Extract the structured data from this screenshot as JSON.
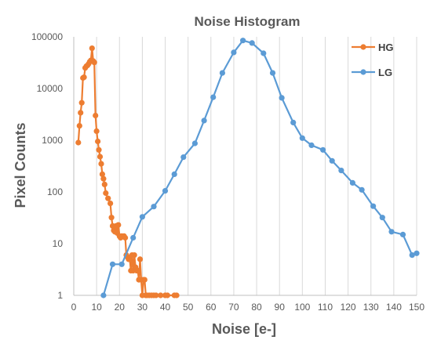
{
  "chart_data": {
    "type": "line",
    "title": "Noise Histogram",
    "xlabel": "Noise [e-]",
    "ylabel": "Pixel Counts",
    "xlim": [
      0,
      150
    ],
    "ylim": [
      1,
      100000
    ],
    "yscale": "log",
    "grid": "vertical",
    "legend_position": "top-right",
    "x_ticks": [
      0,
      10,
      20,
      30,
      40,
      50,
      60,
      70,
      80,
      90,
      100,
      110,
      120,
      130,
      140,
      150
    ],
    "y_ticks": [
      1,
      10,
      100,
      1000,
      10000,
      100000
    ],
    "y_tick_labels": [
      "1",
      "10",
      "100",
      "1000",
      "10000",
      "100000"
    ],
    "series": [
      {
        "name": "HG",
        "color": "#ED7D31",
        "points": [
          [
            2,
            900
          ],
          [
            2.5,
            1900
          ],
          [
            3,
            3400
          ],
          [
            3.5,
            5300
          ],
          [
            4,
            16000
          ],
          [
            4.5,
            16500
          ],
          [
            5,
            25000
          ],
          [
            5.5,
            27000
          ],
          [
            6,
            28000
          ],
          [
            6.5,
            30000
          ],
          [
            7,
            33000
          ],
          [
            7.5,
            35000
          ],
          [
            8,
            60000
          ],
          [
            8.5,
            34000
          ],
          [
            9,
            32000
          ],
          [
            9.5,
            3000
          ],
          [
            10,
            1500
          ],
          [
            10.5,
            950
          ],
          [
            11,
            650
          ],
          [
            11.5,
            480
          ],
          [
            12,
            350
          ],
          [
            12.5,
            220
          ],
          [
            13,
            180
          ],
          [
            13.5,
            140
          ],
          [
            14,
            95
          ],
          [
            15,
            75
          ],
          [
            16,
            60
          ],
          [
            16.5,
            32
          ],
          [
            17,
            22
          ],
          [
            17.5,
            18
          ],
          [
            18,
            17
          ],
          [
            18.5,
            22
          ],
          [
            19,
            16
          ],
          [
            19.5,
            23
          ],
          [
            20,
            14
          ],
          [
            20.5,
            13
          ],
          [
            21,
            14
          ],
          [
            22,
            14
          ],
          [
            22.5,
            13
          ],
          [
            23,
            6
          ],
          [
            23.5,
            5.5
          ],
          [
            24,
            5
          ],
          [
            24.5,
            5
          ],
          [
            25,
            3
          ],
          [
            25.5,
            6
          ],
          [
            26,
            3
          ],
          [
            26.5,
            6
          ],
          [
            27,
            3.5
          ],
          [
            27.5,
            3
          ],
          [
            28,
            3
          ],
          [
            28.5,
            2
          ],
          [
            29,
            5
          ],
          [
            29.5,
            2
          ],
          [
            30,
            1
          ],
          [
            30.5,
            2
          ],
          [
            31,
            2
          ],
          [
            31.5,
            1
          ],
          [
            32,
            1
          ],
          [
            33,
            1
          ],
          [
            34,
            1
          ],
          [
            35,
            1
          ],
          [
            36,
            1
          ],
          [
            38,
            1
          ],
          [
            40,
            1
          ],
          [
            41,
            1
          ],
          [
            44,
            1
          ],
          [
            45,
            1
          ]
        ]
      },
      {
        "name": "LG",
        "color": "#5B9BD5",
        "points": [
          [
            13,
            1
          ],
          [
            17,
            4
          ],
          [
            21,
            4
          ],
          [
            26,
            13
          ],
          [
            30,
            33
          ],
          [
            35,
            52
          ],
          [
            40,
            105
          ],
          [
            44,
            220
          ],
          [
            48,
            470
          ],
          [
            53,
            870
          ],
          [
            57,
            2400
          ],
          [
            61,
            6800
          ],
          [
            65,
            20000
          ],
          [
            70,
            50000
          ],
          [
            74,
            85000
          ],
          [
            78,
            76000
          ],
          [
            83,
            48000
          ],
          [
            87,
            20000
          ],
          [
            91,
            6600
          ],
          [
            96,
            2200
          ],
          [
            100,
            1100
          ],
          [
            104,
            800
          ],
          [
            109,
            650
          ],
          [
            113,
            400
          ],
          [
            117,
            260
          ],
          [
            122,
            150
          ],
          [
            126,
            110
          ],
          [
            131,
            53
          ],
          [
            135,
            32
          ],
          [
            139,
            17
          ],
          [
            144,
            15
          ],
          [
            148,
            6
          ],
          [
            150,
            6.5
          ]
        ]
      }
    ]
  }
}
